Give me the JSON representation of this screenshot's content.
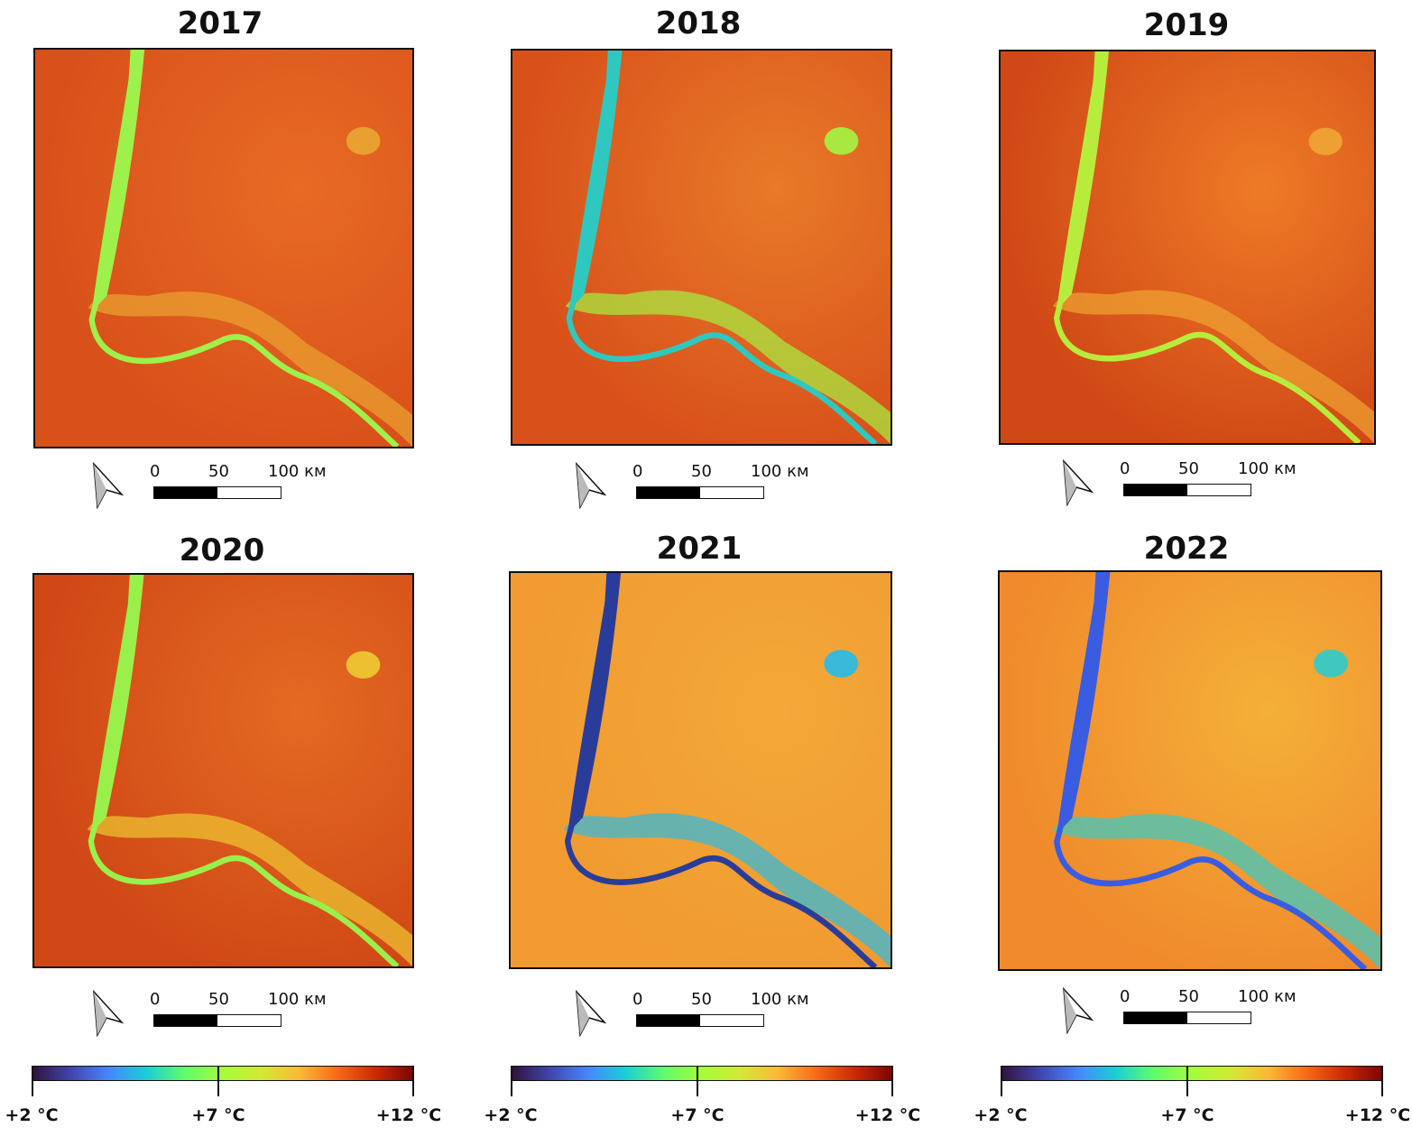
{
  "panels": [
    {
      "year": "2017",
      "base": "#d8501a",
      "mid": "#e86a24",
      "river": "#9ef04a",
      "flood": "#e8a030"
    },
    {
      "year": "2018",
      "base": "#d8501a",
      "mid": "#e87a28",
      "river": "#2ec8c0",
      "flood": "#a8e840"
    },
    {
      "year": "2019",
      "base": "#d04816",
      "mid": "#ee7a26",
      "river": "#b8ec3c",
      "flood": "#eea032"
    },
    {
      "year": "2020",
      "base": "#d04816",
      "mid": "#e46a22",
      "river": "#9af04a",
      "flood": "#ecc030"
    },
    {
      "year": "2021",
      "base": "#f09a30",
      "mid": "#f4a838",
      "river": "#2a3c9a",
      "flood": "#3ab8d8"
    },
    {
      "year": "2022",
      "base": "#f08a2c",
      "mid": "#f4b038",
      "river": "#3a5ce0",
      "flood": "#40c8c0"
    }
  ],
  "scale_bar": {
    "labels": [
      "0",
      "50",
      "100 км"
    ]
  },
  "colorbar": {
    "labels": [
      "+2 °C",
      "+7 °C",
      "+12 °C"
    ],
    "min": 2,
    "mid": 7,
    "max": 12
  },
  "icons": {
    "north_arrow": "north-arrow-icon"
  }
}
